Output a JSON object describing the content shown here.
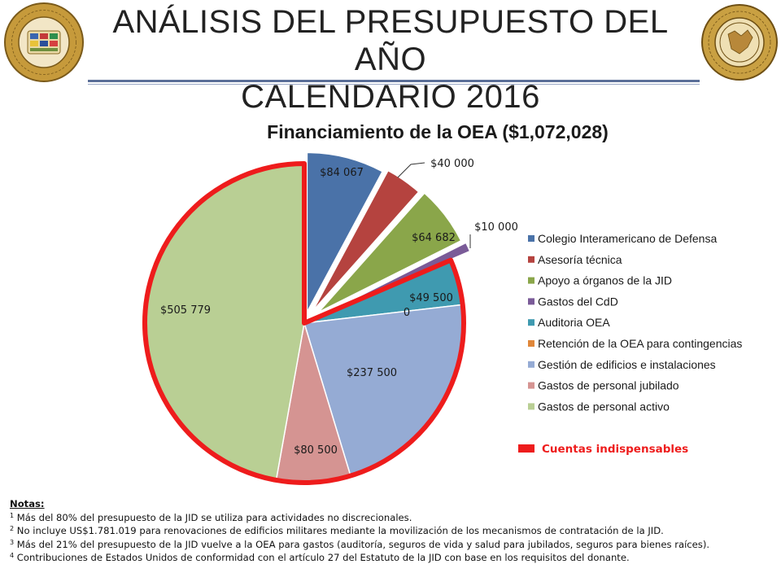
{
  "header": {
    "title_line1": "ANÁLISIS DEL PRESUPUESTO DEL AÑO",
    "title_line2": "CALENDARIO 2016",
    "left_logo_text": "ORGANIZACIÓN DE LOS ESTADOS AMERICANOS",
    "right_logo_text": "JUNTA INTERAMERICANA DE DEFENSA"
  },
  "chart_data": {
    "type": "pie",
    "title": "Financiamiento de la OEA ($1,072,028)",
    "slices": [
      {
        "name": "Colegio Interamericano de Defensa",
        "value": 84067,
        "label": "$84 067",
        "color": "#4a72a8"
      },
      {
        "name": "Asesoría técnica",
        "value": 40000,
        "label": "$40 000",
        "color": "#b5433f"
      },
      {
        "name": "Apoyo a órganos de la JID",
        "value": 64682,
        "label": "$64 682",
        "color": "#8aa64a"
      },
      {
        "name": "Gastos del CdD",
        "value": 10000,
        "label": "$10 000",
        "color": "#7a5b98"
      },
      {
        "name": "Auditoria OEA",
        "value": 49500,
        "label": "$49 500",
        "color": "#3f9ab0"
      },
      {
        "name": "Retención de la OEA para contingencias",
        "value": 0,
        "label": "0",
        "color": "#e0873a"
      },
      {
        "name": "Gestión de edificios e instalaciones",
        "value": 237500,
        "label": "$237 500",
        "color": "#95abd4"
      },
      {
        "name": "Gastos de personal jubilado",
        "value": 80500,
        "label": "$80 500",
        "color": "#d59492"
      },
      {
        "name": "Gastos de personal activo",
        "value": 505779,
        "label": "$505 779",
        "color": "#b9cf94"
      }
    ],
    "legend_position": "right",
    "highlight": {
      "label": "Cuentas indispensables",
      "color": "#ee1c1c"
    }
  },
  "notes": {
    "heading": "Notas:",
    "items": [
      {
        "marker": "1",
        "text": "Más del 80% del presupuesto de la JID se utiliza para actividades no discrecionales."
      },
      {
        "marker": "2",
        "text": "No incluye US$1.781.019 para renovaciones de edificios militares mediante la movilización de los mecanismos de contratación de la JID."
      },
      {
        "marker": "3",
        "text": "Más del 21% del presupuesto de la JID vuelve a la OEA para gastos (auditoría, seguros de vida y salud para jubilados, seguros para bienes raíces)."
      },
      {
        "marker": "4",
        "text": "Contribuciones de Estados Unidos de conformidad con el artículo 27 del Estatuto de la JID con base en los requisitos del donante."
      }
    ]
  }
}
